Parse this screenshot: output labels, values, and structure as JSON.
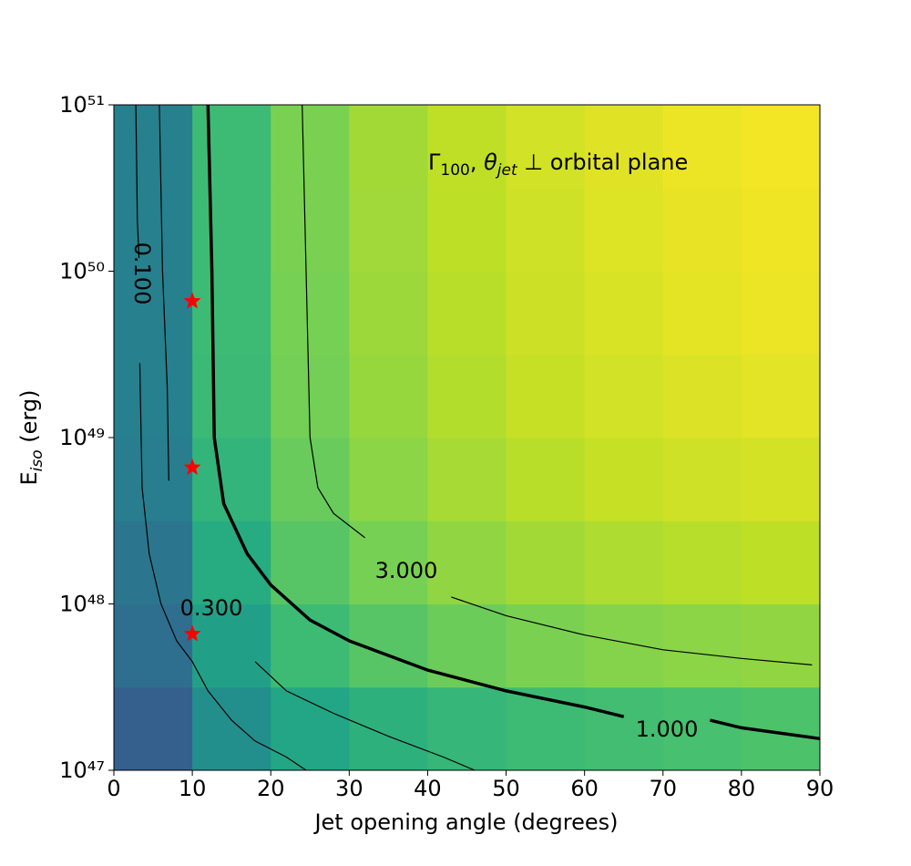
{
  "chart_data": {
    "type": "heatmap",
    "xlabel": "Jet opening angle (degrees)",
    "ylabel": [
      "E",
      "iso",
      " (erg)"
    ],
    "annotation": [
      "Γ",
      "100",
      ", ",
      "θ",
      "jet",
      " ⊥ orbital plane"
    ],
    "xlim": [
      0,
      90
    ],
    "xticks": [
      0,
      10,
      20,
      30,
      40,
      50,
      60,
      70,
      80,
      90
    ],
    "ylim": [
      1e+47,
      1e+51
    ],
    "yscale": "log",
    "yticks": [
      {
        "value": 1e+47,
        "label": "10⁴⁷"
      },
      {
        "value": 1e+48,
        "label": "10⁴⁸"
      },
      {
        "value": 1e+49,
        "label": "10⁴⁹"
      },
      {
        "value": 1e+50,
        "label": "10⁵⁰"
      },
      {
        "value": 1e+51,
        "label": "10⁵¹"
      }
    ],
    "colormap": "viridis",
    "zscale": "log",
    "zlim": [
      0.01,
      10
    ],
    "x_bins": [
      0,
      10,
      20,
      30,
      40,
      50,
      60,
      70,
      80,
      90
    ],
    "y_bins": [
      1e+47,
      3.16e+47,
      1e+48,
      3.16e+48,
      1e+49,
      3.16e+49,
      1e+50,
      3.16e+50,
      1e+51
    ],
    "z": [
      [
        0.08,
        0.3,
        0.6,
        0.8,
        0.95,
        1.1,
        1.2,
        1.3,
        1.4
      ],
      [
        0.12,
        0.5,
        1.1,
        1.6,
        2.1,
        2.5,
        2.8,
        3.0,
        3.2
      ],
      [
        0.15,
        0.7,
        1.6,
        2.4,
        3.2,
        3.8,
        4.3,
        4.7,
        5.0
      ],
      [
        0.18,
        0.9,
        2.0,
        3.0,
        4.0,
        4.8,
        5.5,
        6.0,
        6.4
      ],
      [
        0.2,
        1.05,
        2.3,
        3.4,
        4.5,
        5.5,
        6.3,
        7.0,
        7.5
      ],
      [
        0.2,
        1.1,
        2.4,
        3.6,
        4.8,
        5.9,
        6.8,
        7.6,
        8.2
      ],
      [
        0.2,
        1.1,
        2.5,
        3.7,
        5.0,
        6.1,
        7.1,
        8.0,
        8.7
      ],
      [
        0.2,
        1.1,
        2.5,
        3.8,
        5.1,
        6.3,
        7.3,
        8.2,
        9.0
      ]
    ],
    "contours": [
      {
        "level": 0.1,
        "label": "0.100",
        "linewidth": 1.2,
        "x": [
          2.8,
          3.0,
          3.2,
          null,
          3.3,
          3.6,
          4.5,
          6,
          8,
          10,
          12,
          15,
          18,
          22,
          24.5
        ],
        "y": [
          1e+51,
          2e+50,
          1.2e+50,
          null,
          2.8e+49,
          5e+48,
          2e+48,
          1e+48,
          6e+47,
          4.5e+47,
          3e+47,
          2e+47,
          1.5e+47,
          1.2e+47,
          1e+47
        ]
      },
      {
        "level": 0.3,
        "label": "0.300",
        "linewidth": 1.2,
        "x": [
          5.8,
          6.2,
          6.8,
          7.0,
          null,
          18,
          22,
          28,
          35,
          42,
          46
        ],
        "y": [
          1e+51,
          1e+50,
          2e+49,
          5.5e+48,
          null,
          4.5e+47,
          3e+47,
          2.2e+47,
          1.6e+47,
          1.2e+47,
          1e+47
        ]
      },
      {
        "level": 1.0,
        "label": "1.000",
        "linewidth": 3.5,
        "x": [
          12,
          12.5,
          12.8,
          14,
          17,
          20,
          25,
          30,
          40,
          50,
          60,
          65,
          null,
          76,
          80,
          90
        ],
        "y": [
          1e+51,
          1e+50,
          1e+49,
          4e+48,
          2e+48,
          1.3e+48,
          8e+47,
          6e+47,
          4e+47,
          3e+47,
          2.4e+47,
          2.1e+47,
          null,
          2e+47,
          1.8e+47,
          1.55e+47
        ]
      },
      {
        "level": 3.0,
        "label": "3.000",
        "linewidth": 1.2,
        "x": [
          24,
          24.5,
          25,
          26,
          28,
          32,
          null,
          43,
          50,
          60,
          70,
          80,
          89
        ],
        "y": [
          1e+51,
          1e+50,
          1e+49,
          5e+48,
          3.5e+48,
          2.5e+48,
          null,
          1.1e+48,
          8.5e+47,
          6.5e+47,
          5.3e+47,
          4.7e+47,
          4.3e+47
        ]
      }
    ],
    "markers": {
      "marker": "star",
      "color": "#ff0000",
      "x": [
        10,
        10,
        10
      ],
      "y": [
        6.6e+49,
        6.6e+48,
        6.6e+47
      ]
    }
  }
}
